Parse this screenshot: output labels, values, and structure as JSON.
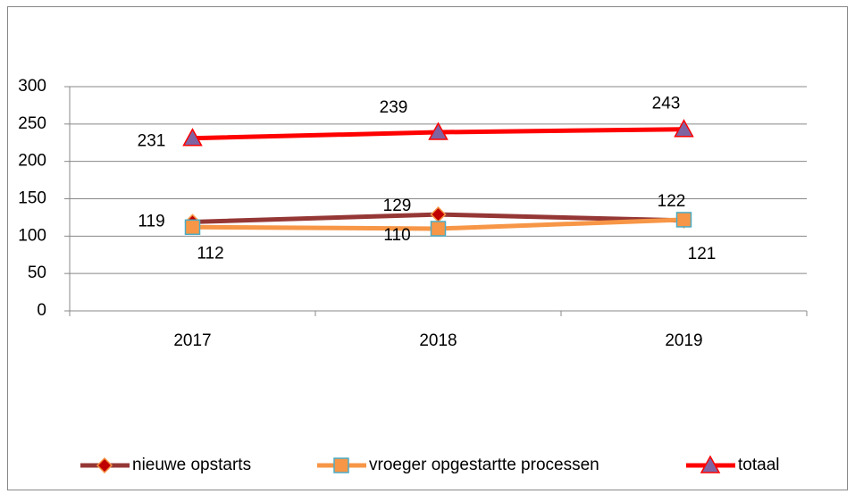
{
  "chart_data": {
    "type": "line",
    "categories": [
      "2017",
      "2018",
      "2019"
    ],
    "series": [
      {
        "name": "nieuwe opstarts",
        "color": "#953735",
        "marker": "diamond",
        "marker_color": "#C00000",
        "marker_edge": "#F79646",
        "values": [
          119,
          129,
          121
        ]
      },
      {
        "name": "vroeger opgestartte processen",
        "color": "#F79646",
        "marker": "square",
        "marker_color": "#F79646",
        "marker_edge": "#4BACC6",
        "values": [
          112,
          110,
          122
        ]
      },
      {
        "name": "totaal",
        "color": "#FF0000",
        "marker": "triangle",
        "marker_color": "#8064A2",
        "marker_edge": "#FF0000",
        "values": [
          231,
          239,
          243
        ]
      }
    ],
    "ylim": [
      0,
      300
    ],
    "yticks": [
      0,
      50,
      100,
      150,
      200,
      250,
      300
    ],
    "grid": true,
    "legend": "bottom"
  }
}
